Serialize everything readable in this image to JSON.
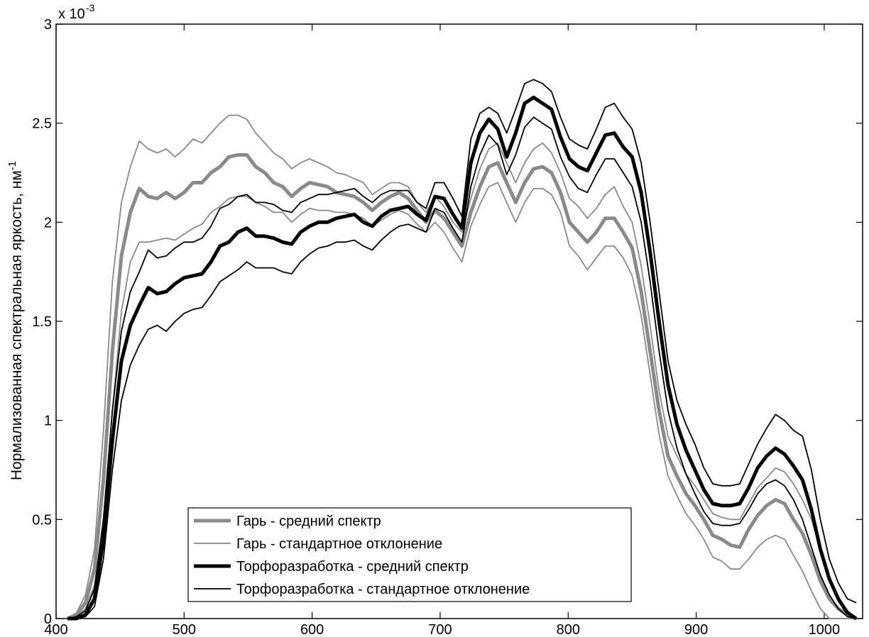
{
  "chart_data": {
    "type": "line",
    "title": "",
    "xlabel": "",
    "ylabel": "Нормализованная спектральная яркость, нм",
    "ylabel_superscript": "-1",
    "y_scale_prefix": "x 10",
    "y_scale_exponent": "-3",
    "xlim": [
      400,
      1030
    ],
    "ylim": [
      0,
      3
    ],
    "x_ticks": [
      "400",
      "500",
      "600",
      "700",
      "800",
      "900",
      "1000"
    ],
    "y_ticks": [
      "0",
      "0.5",
      "1",
      "1.5",
      "2",
      "2.5",
      "3"
    ],
    "grid": false,
    "legend_position": "bottom-left",
    "x": [
      409,
      416,
      423,
      430,
      437,
      444,
      451,
      458,
      465,
      472,
      479,
      486,
      493,
      500,
      507,
      514,
      521,
      528,
      535,
      542,
      549,
      556,
      563,
      570,
      577,
      584,
      591,
      598,
      605,
      612,
      619,
      626,
      633,
      640,
      647,
      654,
      661,
      668,
      675,
      682,
      689,
      696,
      703,
      710,
      717,
      724,
      731,
      738,
      745,
      752,
      759,
      766,
      773,
      780,
      787,
      794,
      801,
      808,
      815,
      822,
      829,
      836,
      843,
      850,
      857,
      864,
      871,
      878,
      885,
      892,
      899,
      906,
      913,
      920,
      927,
      934,
      941,
      948,
      955,
      962,
      969,
      976,
      983,
      990,
      997,
      1004,
      1011,
      1018,
      1025
    ],
    "series": [
      {
        "name": "Гарь - средний спектр",
        "color": "#8a8a8a",
        "width": 5,
        "values": [
          0.0,
          0.02,
          0.08,
          0.25,
          0.7,
          1.35,
          1.83,
          2.05,
          2.17,
          2.13,
          2.12,
          2.15,
          2.12,
          2.15,
          2.2,
          2.2,
          2.25,
          2.28,
          2.33,
          2.34,
          2.34,
          2.28,
          2.25,
          2.2,
          2.18,
          2.13,
          2.17,
          2.2,
          2.19,
          2.18,
          2.15,
          2.14,
          2.13,
          2.1,
          2.06,
          2.1,
          2.13,
          2.15,
          2.12,
          2.06,
          2.0,
          2.06,
          2.02,
          1.95,
          1.88,
          2.05,
          2.18,
          2.28,
          2.3,
          2.2,
          2.1,
          2.2,
          2.27,
          2.28,
          2.25,
          2.15,
          2.0,
          1.95,
          1.9,
          1.95,
          2.02,
          2.02,
          1.95,
          1.87,
          1.65,
          1.35,
          1.05,
          0.82,
          0.72,
          0.63,
          0.57,
          0.5,
          0.42,
          0.4,
          0.37,
          0.36,
          0.45,
          0.52,
          0.57,
          0.6,
          0.58,
          0.5,
          0.43,
          0.32,
          0.19,
          0.1,
          0.05,
          0.02,
          0.0
        ]
      },
      {
        "name": "Гарь - стандартное отклонение",
        "color": "#8a8a8a",
        "width": 1.8,
        "values": [
          0.0,
          0.03,
          0.12,
          0.35,
          0.95,
          1.7,
          2.1,
          2.28,
          2.41,
          2.37,
          2.35,
          2.37,
          2.33,
          2.37,
          2.42,
          2.4,
          2.45,
          2.5,
          2.54,
          2.54,
          2.52,
          2.45,
          2.4,
          2.35,
          2.32,
          2.27,
          2.3,
          2.32,
          2.3,
          2.28,
          2.25,
          2.24,
          2.22,
          2.2,
          2.14,
          2.17,
          2.2,
          2.2,
          2.18,
          2.1,
          2.05,
          2.13,
          2.08,
          2.0,
          1.95,
          2.12,
          2.27,
          2.37,
          2.4,
          2.3,
          2.2,
          2.3,
          2.37,
          2.4,
          2.35,
          2.25,
          2.12,
          2.08,
          2.02,
          2.07,
          2.14,
          2.18,
          2.08,
          2.0,
          1.78,
          1.48,
          1.15,
          0.92,
          0.82,
          0.73,
          0.67,
          0.6,
          0.53,
          0.51,
          0.5,
          0.5,
          0.58,
          0.66,
          0.71,
          0.76,
          0.74,
          0.68,
          0.6,
          0.5,
          0.35,
          0.2,
          0.1,
          0.04,
          0.0
        ],
        "values_lower": [
          0.0,
          0.01,
          0.05,
          0.17,
          0.5,
          1.05,
          1.55,
          1.8,
          1.9,
          1.9,
          1.91,
          1.92,
          1.91,
          1.94,
          1.97,
          1.99,
          2.05,
          2.08,
          2.12,
          2.13,
          2.13,
          2.1,
          2.08,
          2.05,
          2.05,
          2.0,
          2.04,
          2.07,
          2.06,
          2.06,
          2.05,
          2.05,
          2.04,
          2.02,
          1.98,
          2.01,
          2.04,
          2.06,
          2.04,
          1.99,
          1.95,
          2.0,
          1.95,
          1.87,
          1.8,
          1.98,
          2.09,
          2.18,
          2.2,
          2.1,
          2.0,
          2.1,
          2.17,
          2.17,
          2.14,
          2.05,
          1.88,
          1.83,
          1.76,
          1.82,
          1.88,
          1.88,
          1.82,
          1.73,
          1.53,
          1.23,
          0.93,
          0.72,
          0.62,
          0.53,
          0.47,
          0.4,
          0.31,
          0.29,
          0.25,
          0.25,
          0.3,
          0.36,
          0.4,
          0.42,
          0.4,
          0.32,
          0.24,
          0.14,
          0.05,
          0.0,
          0.0,
          0.0,
          0.0
        ]
      },
      {
        "name": "Торфоразработка - средний спектр",
        "color": "#000000",
        "width": 5,
        "values": [
          0.0,
          0.0,
          0.02,
          0.1,
          0.4,
          0.9,
          1.3,
          1.48,
          1.58,
          1.67,
          1.64,
          1.65,
          1.69,
          1.72,
          1.73,
          1.74,
          1.8,
          1.88,
          1.9,
          1.95,
          1.97,
          1.93,
          1.93,
          1.92,
          1.9,
          1.89,
          1.95,
          1.98,
          2.0,
          2.0,
          2.02,
          2.03,
          2.04,
          2.0,
          1.98,
          2.03,
          2.06,
          2.07,
          2.08,
          2.04,
          2.01,
          2.13,
          2.12,
          2.04,
          1.97,
          2.3,
          2.45,
          2.52,
          2.47,
          2.33,
          2.45,
          2.6,
          2.63,
          2.6,
          2.57,
          2.43,
          2.32,
          2.28,
          2.26,
          2.35,
          2.44,
          2.45,
          2.38,
          2.33,
          2.15,
          1.85,
          1.5,
          1.18,
          0.98,
          0.85,
          0.75,
          0.65,
          0.58,
          0.57,
          0.57,
          0.58,
          0.66,
          0.76,
          0.82,
          0.86,
          0.83,
          0.77,
          0.7,
          0.55,
          0.35,
          0.2,
          0.1,
          0.03,
          0.0
        ]
      },
      {
        "name": "Торфоразработка - стандартное отклонение",
        "color": "#000000",
        "width": 1.8,
        "values": [
          0.0,
          0.01,
          0.04,
          0.15,
          0.5,
          1.05,
          1.45,
          1.65,
          1.75,
          1.86,
          1.82,
          1.83,
          1.87,
          1.9,
          1.9,
          1.92,
          1.98,
          2.07,
          2.09,
          2.13,
          2.14,
          2.1,
          2.1,
          2.09,
          2.06,
          2.05,
          2.1,
          2.12,
          2.14,
          2.14,
          2.15,
          2.16,
          2.17,
          2.13,
          2.1,
          2.14,
          2.16,
          2.16,
          2.16,
          2.1,
          2.07,
          2.2,
          2.2,
          2.12,
          2.03,
          2.42,
          2.55,
          2.58,
          2.55,
          2.45,
          2.57,
          2.7,
          2.72,
          2.7,
          2.66,
          2.53,
          2.42,
          2.39,
          2.37,
          2.47,
          2.58,
          2.6,
          2.53,
          2.47,
          2.3,
          2.0,
          1.65,
          1.3,
          1.1,
          0.98,
          0.88,
          0.76,
          0.68,
          0.67,
          0.67,
          0.68,
          0.78,
          0.88,
          0.96,
          1.03,
          1.0,
          0.95,
          0.92,
          0.75,
          0.5,
          0.3,
          0.18,
          0.1,
          0.08
        ],
        "values_lower": [
          0.0,
          0.0,
          0.01,
          0.06,
          0.3,
          0.75,
          1.1,
          1.28,
          1.38,
          1.46,
          1.48,
          1.45,
          1.5,
          1.54,
          1.56,
          1.57,
          1.63,
          1.7,
          1.73,
          1.76,
          1.8,
          1.77,
          1.77,
          1.77,
          1.75,
          1.74,
          1.8,
          1.84,
          1.87,
          1.88,
          1.9,
          1.9,
          1.91,
          1.88,
          1.86,
          1.91,
          1.95,
          1.98,
          1.99,
          1.97,
          1.95,
          2.07,
          2.05,
          1.97,
          1.9,
          2.18,
          2.34,
          2.44,
          2.39,
          2.24,
          2.34,
          2.48,
          2.53,
          2.5,
          2.47,
          2.33,
          2.23,
          2.17,
          2.15,
          2.24,
          2.32,
          2.32,
          2.25,
          2.18,
          2.0,
          1.7,
          1.35,
          1.05,
          0.86,
          0.73,
          0.63,
          0.54,
          0.48,
          0.47,
          0.47,
          0.48,
          0.55,
          0.63,
          0.68,
          0.7,
          0.67,
          0.6,
          0.5,
          0.36,
          0.22,
          0.12,
          0.05,
          0.01,
          0.0
        ]
      }
    ]
  },
  "legend": {
    "items": [
      {
        "label": "Гарь - средний спектр",
        "color": "#8a8a8a",
        "width": 5
      },
      {
        "label": "Гарь - стандартное отклонение",
        "color": "#8a8a8a",
        "width": 1.8
      },
      {
        "label": "Торфоразработка - средний спектр",
        "color": "#000000",
        "width": 5
      },
      {
        "label": "Торфоразработка - стандартное отклонение",
        "color": "#000000",
        "width": 1.8
      }
    ]
  }
}
